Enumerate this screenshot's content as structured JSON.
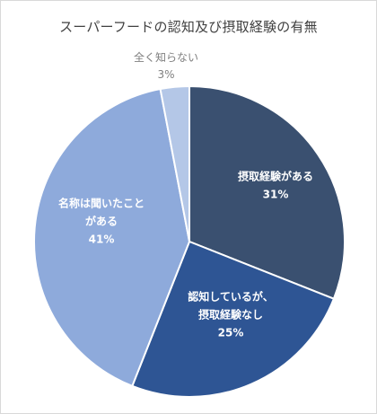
{
  "chart_data": {
    "type": "pie",
    "title": "スーパーフードの認知及び摂取経験の有無",
    "slices": [
      {
        "label": [
          "摂取経験がある"
        ],
        "value": 31,
        "value_label": "31%",
        "color": "#3a5070",
        "label_style": "light"
      },
      {
        "label": [
          "認知しているが、",
          "摂取経験なし"
        ],
        "value": 25,
        "value_label": "25%",
        "color": "#2e5594",
        "label_style": "light"
      },
      {
        "label": [
          "名称は聞いたこと",
          "がある"
        ],
        "value": 41,
        "value_label": "41%",
        "color": "#8eaadb",
        "label_style": "light"
      },
      {
        "label": [
          "全く知らない"
        ],
        "value": 3,
        "value_label": "3%",
        "color": "#b4c7e7",
        "label_style": "dark"
      }
    ],
    "start_angle_deg": 0,
    "direction": "clockwise",
    "legend": "none"
  }
}
